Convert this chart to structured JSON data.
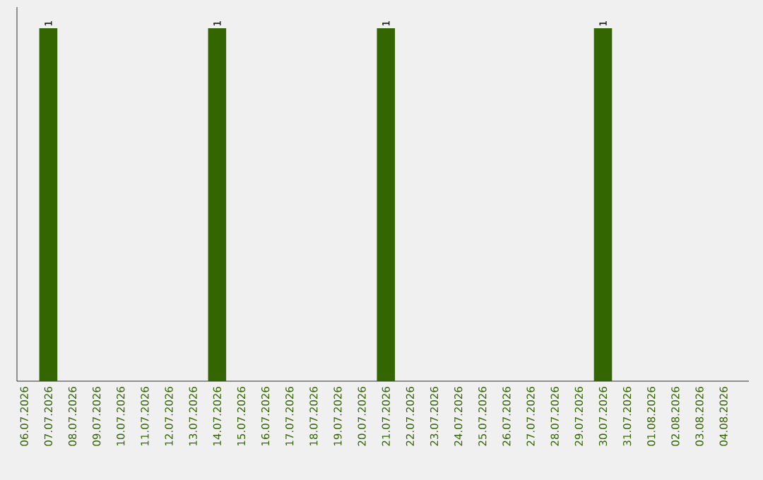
{
  "chart_data": {
    "type": "bar",
    "color": "#336600",
    "categories": [
      "06.07.2026",
      "07.07.2026",
      "08.07.2026",
      "09.07.2026",
      "10.07.2026",
      "11.07.2026",
      "12.07.2026",
      "13.07.2026",
      "14.07.2026",
      "15.07.2026",
      "16.07.2026",
      "17.07.2026",
      "18.07.2026",
      "19.07.2026",
      "20.07.2026",
      "21.07.2026",
      "22.07.2026",
      "23.07.2026",
      "24.07.2026",
      "25.07.2026",
      "26.07.2026",
      "27.07.2026",
      "28.07.2026",
      "29.07.2026",
      "30.07.2026",
      "31.07.2026",
      "01.08.2026",
      "02.08.2026",
      "03.08.2026",
      "04.08.2026"
    ],
    "values": [
      0,
      1,
      0,
      0,
      0,
      0,
      0,
      0,
      1,
      0,
      0,
      0,
      0,
      0,
      0,
      1,
      0,
      0,
      0,
      0,
      0,
      0,
      0,
      0,
      1,
      0,
      0,
      0,
      0,
      0
    ],
    "value_labels": [
      null,
      "1",
      null,
      null,
      null,
      null,
      null,
      null,
      "1",
      null,
      null,
      null,
      null,
      null,
      null,
      "1",
      null,
      null,
      null,
      null,
      null,
      null,
      null,
      null,
      "1",
      null,
      null,
      null,
      null,
      null
    ],
    "tick_labels": "x",
    "grid": false
  }
}
